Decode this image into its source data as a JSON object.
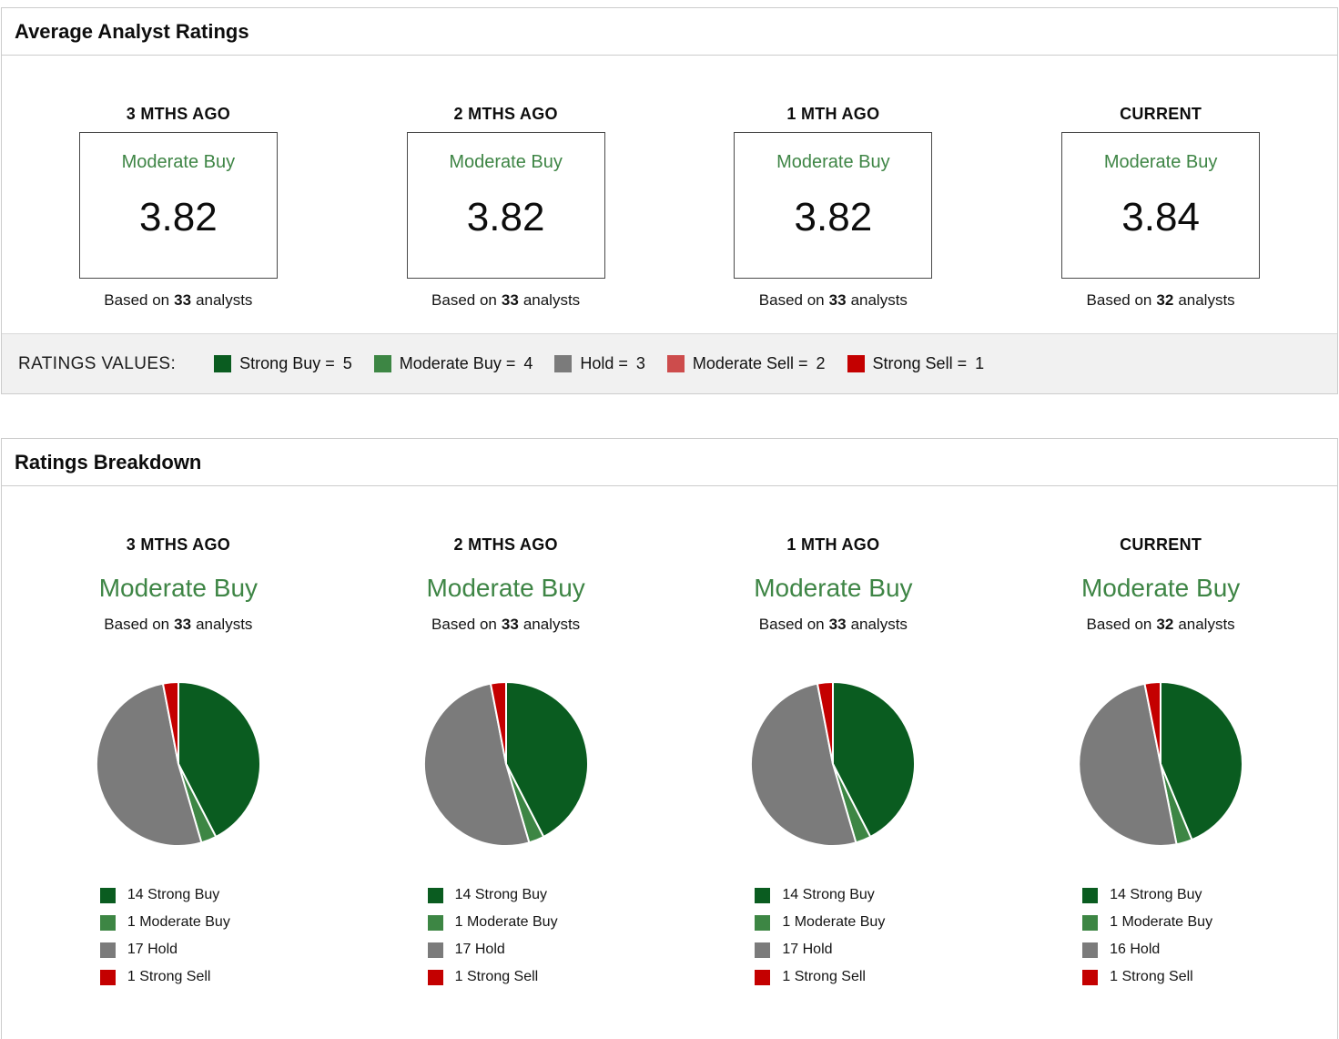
{
  "colors": {
    "strong_buy": "#0a5c20",
    "moderate_buy": "#3d8644",
    "hold": "#7b7b7b",
    "moderate_sell": "#cd4c4c",
    "strong_sell": "#c40000",
    "rating_green": "#3e8545"
  },
  "average_ratings": {
    "title": "Average Analyst Ratings",
    "columns": [
      {
        "period": "3 MTHS AGO",
        "rating": "Moderate Buy",
        "score": "3.82",
        "based_prefix": "Based on",
        "analyst_count": "33",
        "based_suffix": "analysts"
      },
      {
        "period": "2 MTHS AGO",
        "rating": "Moderate Buy",
        "score": "3.82",
        "based_prefix": "Based on",
        "analyst_count": "33",
        "based_suffix": "analysts"
      },
      {
        "period": "1 MTH AGO",
        "rating": "Moderate Buy",
        "score": "3.82",
        "based_prefix": "Based on",
        "analyst_count": "33",
        "based_suffix": "analysts"
      },
      {
        "period": "CURRENT",
        "rating": "Moderate Buy",
        "score": "3.84",
        "based_prefix": "Based on",
        "analyst_count": "32",
        "based_suffix": "analysts"
      }
    ],
    "ratings_values": {
      "label": "RATINGS VALUES:",
      "items": [
        {
          "label": "Strong Buy =",
          "value": "5",
          "color_key": "strong_buy"
        },
        {
          "label": "Moderate Buy =",
          "value": "4",
          "color_key": "moderate_buy"
        },
        {
          "label": "Hold =",
          "value": "3",
          "color_key": "hold"
        },
        {
          "label": "Moderate Sell =",
          "value": "2",
          "color_key": "moderate_sell"
        },
        {
          "label": "Strong Sell =",
          "value": "1",
          "color_key": "strong_sell"
        }
      ]
    }
  },
  "breakdown": {
    "title": "Ratings Breakdown",
    "columns": [
      {
        "period": "3 MTHS AGO",
        "rating": "Moderate Buy",
        "based_prefix": "Based on",
        "analyst_count": "33",
        "based_suffix": "analysts"
      },
      {
        "period": "2 MTHS AGO",
        "rating": "Moderate Buy",
        "based_prefix": "Based on",
        "analyst_count": "33",
        "based_suffix": "analysts"
      },
      {
        "period": "1 MTH AGO",
        "rating": "Moderate Buy",
        "based_prefix": "Based on",
        "analyst_count": "33",
        "based_suffix": "analysts"
      },
      {
        "period": "CURRENT",
        "rating": "Moderate Buy",
        "based_prefix": "Based on",
        "analyst_count": "32",
        "based_suffix": "analysts"
      }
    ]
  },
  "chart_data": [
    {
      "type": "pie",
      "period": "3 MTHS AGO",
      "total_analysts": 33,
      "labels": [
        "Strong Buy",
        "Moderate Buy",
        "Hold",
        "Strong Sell"
      ],
      "values": [
        14,
        1,
        17,
        1
      ],
      "color_keys": [
        "strong_buy",
        "moderate_buy",
        "hold",
        "strong_sell"
      ],
      "legend_texts": [
        "14 Strong Buy",
        "1 Moderate Buy",
        "17 Hold",
        "1 Strong Sell"
      ]
    },
    {
      "type": "pie",
      "period": "2 MTHS AGO",
      "total_analysts": 33,
      "labels": [
        "Strong Buy",
        "Moderate Buy",
        "Hold",
        "Strong Sell"
      ],
      "values": [
        14,
        1,
        17,
        1
      ],
      "color_keys": [
        "strong_buy",
        "moderate_buy",
        "hold",
        "strong_sell"
      ],
      "legend_texts": [
        "14 Strong Buy",
        "1 Moderate Buy",
        "17 Hold",
        "1 Strong Sell"
      ]
    },
    {
      "type": "pie",
      "period": "1 MTH AGO",
      "total_analysts": 33,
      "labels": [
        "Strong Buy",
        "Moderate Buy",
        "Hold",
        "Strong Sell"
      ],
      "values": [
        14,
        1,
        17,
        1
      ],
      "color_keys": [
        "strong_buy",
        "moderate_buy",
        "hold",
        "strong_sell"
      ],
      "legend_texts": [
        "14 Strong Buy",
        "1 Moderate Buy",
        "17 Hold",
        "1 Strong Sell"
      ]
    },
    {
      "type": "pie",
      "period": "CURRENT",
      "total_analysts": 32,
      "labels": [
        "Strong Buy",
        "Moderate Buy",
        "Hold",
        "Strong Sell"
      ],
      "values": [
        14,
        1,
        16,
        1
      ],
      "color_keys": [
        "strong_buy",
        "moderate_buy",
        "hold",
        "strong_sell"
      ],
      "legend_texts": [
        "14 Strong Buy",
        "1 Moderate Buy",
        "16 Hold",
        "1 Strong Sell"
      ]
    }
  ]
}
